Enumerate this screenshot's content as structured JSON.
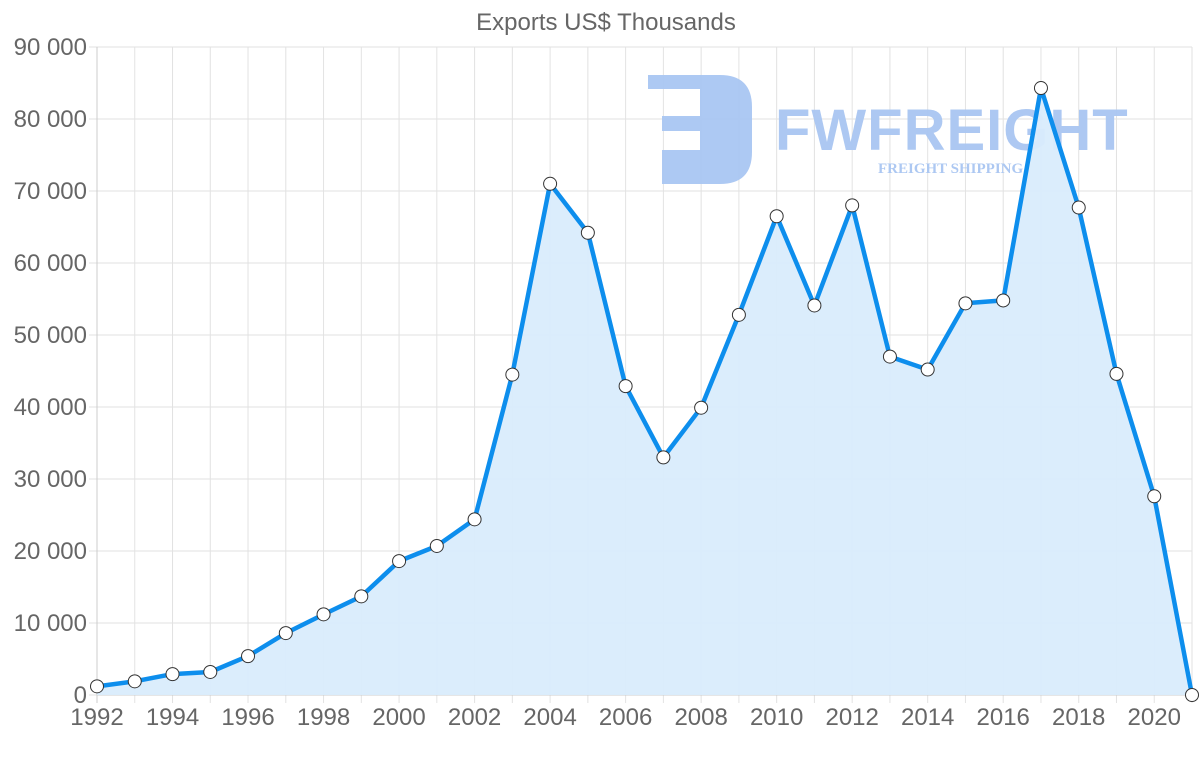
{
  "chart_data": {
    "type": "area",
    "title": "Exports US$ Thousands",
    "xlabel": "",
    "ylabel": "",
    "x": [
      1992,
      1993,
      1994,
      1995,
      1996,
      1997,
      1998,
      1999,
      2000,
      2001,
      2002,
      2003,
      2004,
      2005,
      2006,
      2007,
      2008,
      2009,
      2010,
      2011,
      2012,
      2013,
      2014,
      2015,
      2016,
      2017,
      2018,
      2019,
      2020,
      2021
    ],
    "series": [
      {
        "name": "Exports US$ Thousands",
        "values": [
          1200,
          1900,
          2900,
          3200,
          5400,
          8600,
          11200,
          13700,
          18600,
          20700,
          24400,
          44500,
          71000,
          64200,
          42900,
          33000,
          39900,
          52800,
          66500,
          54100,
          68000,
          47000,
          45200,
          54400,
          54800,
          84300,
          67700,
          44600,
          27600,
          0
        ],
        "color": "#0d8eed",
        "fill": "#d9ecfc"
      }
    ],
    "x_tick_labels": [
      "1992",
      "1994",
      "1996",
      "1998",
      "2000",
      "2002",
      "2004",
      "2006",
      "2008",
      "2010",
      "2012",
      "2014",
      "2016",
      "2018",
      "2020"
    ],
    "y_tick_labels": [
      "0",
      "10 000",
      "20 000",
      "30 000",
      "40 000",
      "50 000",
      "60 000",
      "70 000",
      "80 000",
      "90 000"
    ],
    "ylim": [
      0,
      90000
    ],
    "xlim": [
      1992,
      2021
    ],
    "grid": true,
    "legend": "none",
    "watermark": {
      "text": "FWFREIGHT",
      "subtext": "FREIGHT SHIPPING"
    }
  }
}
